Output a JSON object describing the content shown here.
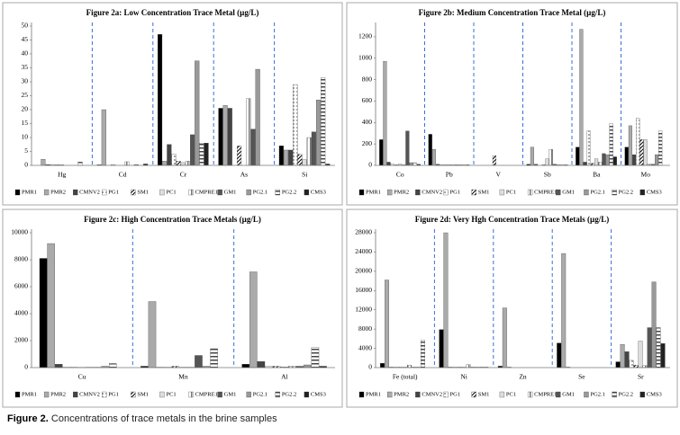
{
  "chart_data": [
    {
      "type": "bar",
      "title": "Figure 2a: Low Concentration Trace Metal (µg/L)",
      "categories": [
        "Hg",
        "Cd",
        "Cr",
        "As",
        "Si"
      ],
      "ylim": [
        0,
        50
      ],
      "yticks": [
        0,
        5,
        10,
        15,
        20,
        25,
        30,
        35,
        40,
        45,
        50
      ],
      "separator_color": "#3a6fd8",
      "series": [
        {
          "name": "PMR1",
          "color": "#000000",
          "values": [
            0,
            0.2,
            47,
            20.5,
            7
          ]
        },
        {
          "name": "PMR2",
          "color": "#aaaaaa",
          "values": [
            2.2,
            20,
            1.5,
            21.5,
            5.5
          ]
        },
        {
          "name": "CMNV2",
          "color": "#444444",
          "values": [
            0.3,
            0,
            7.5,
            20.5,
            5.5
          ]
        },
        {
          "name": "PG1",
          "color": "#666666",
          "pattern": "dots",
          "values": [
            0.3,
            0.3,
            4,
            0,
            29
          ]
        },
        {
          "name": "SM1",
          "color": "#000000",
          "pattern": "diag",
          "values": [
            0.2,
            0,
            1.5,
            7,
            4
          ]
        },
        {
          "name": "PC1",
          "color": "#dddddd",
          "values": [
            0.2,
            0,
            1,
            0,
            2
          ]
        },
        {
          "name": "CMPRE1",
          "color": "#777777",
          "pattern": "vstripe",
          "values": [
            0,
            1.3,
            1.5,
            24,
            10
          ]
        },
        {
          "name": "GM1",
          "color": "#555555",
          "values": [
            0,
            0,
            11,
            13,
            12
          ]
        },
        {
          "name": "PG2.1",
          "color": "#999999",
          "values": [
            0,
            0.3,
            37.5,
            34.5,
            23.5
          ]
        },
        {
          "name": "PG2.2",
          "color": "#444444",
          "pattern": "hstripe",
          "values": [
            1.2,
            0,
            8,
            0,
            31.5
          ]
        },
        {
          "name": "CMS3",
          "color": "#222222",
          "values": [
            0,
            0.5,
            8,
            0,
            0.5
          ]
        }
      ]
    },
    {
      "type": "bar",
      "title": "Figure 2b: Medium Concentration Trace Metal (µg/L)",
      "categories": [
        "Co",
        "Pb",
        "V",
        "Sb",
        "Ba",
        "Mo"
      ],
      "ylim": [
        0,
        1300
      ],
      "yticks": [
        0,
        200,
        400,
        600,
        800,
        1000,
        1200
      ],
      "separator_color": "#3a6fd8",
      "series": [
        {
          "name": "PMR1",
          "color": "#000000",
          "values": [
            240,
            290,
            0,
            10,
            170,
            170
          ]
        },
        {
          "name": "PMR2",
          "color": "#aaaaaa",
          "values": [
            970,
            150,
            0,
            170,
            1270,
            370
          ]
        },
        {
          "name": "CMNV2",
          "color": "#444444",
          "values": [
            30,
            10,
            0,
            10,
            30,
            100
          ]
        },
        {
          "name": "PG1",
          "color": "#666666",
          "pattern": "dots",
          "values": [
            10,
            5,
            0,
            0,
            320,
            440
          ]
        },
        {
          "name": "SM1",
          "color": "#000000",
          "pattern": "diag",
          "values": [
            5,
            5,
            90,
            5,
            20,
            240
          ]
        },
        {
          "name": "PC1",
          "color": "#dddddd",
          "values": [
            10,
            5,
            0,
            60,
            60,
            240
          ]
        },
        {
          "name": "CMPRE1",
          "color": "#777777",
          "pattern": "vstripe",
          "values": [
            5,
            5,
            0,
            150,
            30,
            10
          ]
        },
        {
          "name": "GM1",
          "color": "#555555",
          "values": [
            320,
            5,
            0,
            10,
            110,
            10
          ]
        },
        {
          "name": "PG2.1",
          "color": "#999999",
          "values": [
            25,
            5,
            0,
            5,
            100,
            100
          ]
        },
        {
          "name": "PG2.2",
          "color": "#444444",
          "pattern": "hstripe",
          "values": [
            25,
            5,
            0,
            5,
            390,
            320
          ]
        },
        {
          "name": "CMS3",
          "color": "#222222",
          "values": [
            10,
            5,
            0,
            5,
            80,
            0
          ]
        }
      ]
    },
    {
      "type": "bar",
      "title": "Figure 2c: High Concentration Trace Metals (µg/L)",
      "categories": [
        "Cu",
        "Mn",
        "Al"
      ],
      "ylim": [
        0,
        10000
      ],
      "yticks": [
        0,
        2000,
        4000,
        6000,
        8000,
        10000
      ],
      "separator_color": "#3a6fd8",
      "series": [
        {
          "name": "PMR1",
          "color": "#000000",
          "values": [
            8100,
            100,
            250
          ]
        },
        {
          "name": "PMR2",
          "color": "#aaaaaa",
          "values": [
            9200,
            4900,
            7100
          ]
        },
        {
          "name": "CMNV2",
          "color": "#444444",
          "values": [
            250,
            30,
            450
          ]
        },
        {
          "name": "PG1",
          "color": "#666666",
          "pattern": "dots",
          "values": [
            30,
            30,
            100
          ]
        },
        {
          "name": "SM1",
          "color": "#000000",
          "pattern": "diag",
          "values": [
            30,
            100,
            100
          ]
        },
        {
          "name": "PC1",
          "color": "#dddddd",
          "values": [
            20,
            30,
            50
          ]
        },
        {
          "name": "CMPRE1",
          "color": "#777777",
          "pattern": "vstripe",
          "values": [
            30,
            30,
            100
          ]
        },
        {
          "name": "GM1",
          "color": "#555555",
          "values": [
            30,
            900,
            100
          ]
        },
        {
          "name": "PG2.1",
          "color": "#999999",
          "values": [
            100,
            100,
            200
          ]
        },
        {
          "name": "PG2.2",
          "color": "#444444",
          "pattern": "hstripe",
          "values": [
            300,
            1400,
            1500
          ]
        },
        {
          "name": "CMS3",
          "color": "#222222",
          "values": [
            0,
            0,
            100
          ]
        }
      ]
    },
    {
      "type": "bar",
      "title": "Figure 2d: Very Hgh Concentration Trace Metals (µg/L)",
      "categories": [
        "Fe (total)",
        "Ni",
        "Zn",
        "Se",
        "Sr"
      ],
      "ylim": [
        0,
        28000
      ],
      "yticks": [
        0,
        4000,
        8000,
        12000,
        16000,
        20000,
        24000,
        28000
      ],
      "separator_color": "#3a6fd8",
      "series": [
        {
          "name": "PMR1",
          "color": "#000000",
          "values": [
            900,
            7900,
            300,
            5100,
            1200
          ]
        },
        {
          "name": "PMR2",
          "color": "#aaaaaa",
          "values": [
            18200,
            28000,
            12400,
            23700,
            4800
          ]
        },
        {
          "name": "CMNV2",
          "color": "#444444",
          "values": [
            100,
            100,
            100,
            100,
            3300
          ]
        },
        {
          "name": "PG1",
          "color": "#666666",
          "pattern": "dots",
          "values": [
            100,
            100,
            0,
            0,
            1500
          ]
        },
        {
          "name": "SM1",
          "color": "#000000",
          "pattern": "diag",
          "values": [
            100,
            100,
            0,
            0,
            500
          ]
        },
        {
          "name": "PC1",
          "color": "#dddddd",
          "values": [
            100,
            100,
            0,
            0,
            5500
          ]
        },
        {
          "name": "CMPRE1",
          "color": "#777777",
          "pattern": "vstripe",
          "values": [
            500,
            600,
            0,
            0,
            400
          ]
        },
        {
          "name": "GM1",
          "color": "#555555",
          "values": [
            100,
            100,
            0,
            0,
            8300
          ]
        },
        {
          "name": "PG2.1",
          "color": "#999999",
          "values": [
            100,
            100,
            0,
            0,
            17800
          ]
        },
        {
          "name": "PG2.2",
          "color": "#444444",
          "pattern": "hstripe",
          "values": [
            5700,
            100,
            0,
            0,
            8300
          ]
        },
        {
          "name": "CMS3",
          "color": "#222222",
          "values": [
            0,
            100,
            0,
            0,
            5000
          ]
        }
      ]
    }
  ],
  "caption": {
    "label": "Figure 2.",
    "text": "Concentrations of trace metals in the brine samples"
  }
}
